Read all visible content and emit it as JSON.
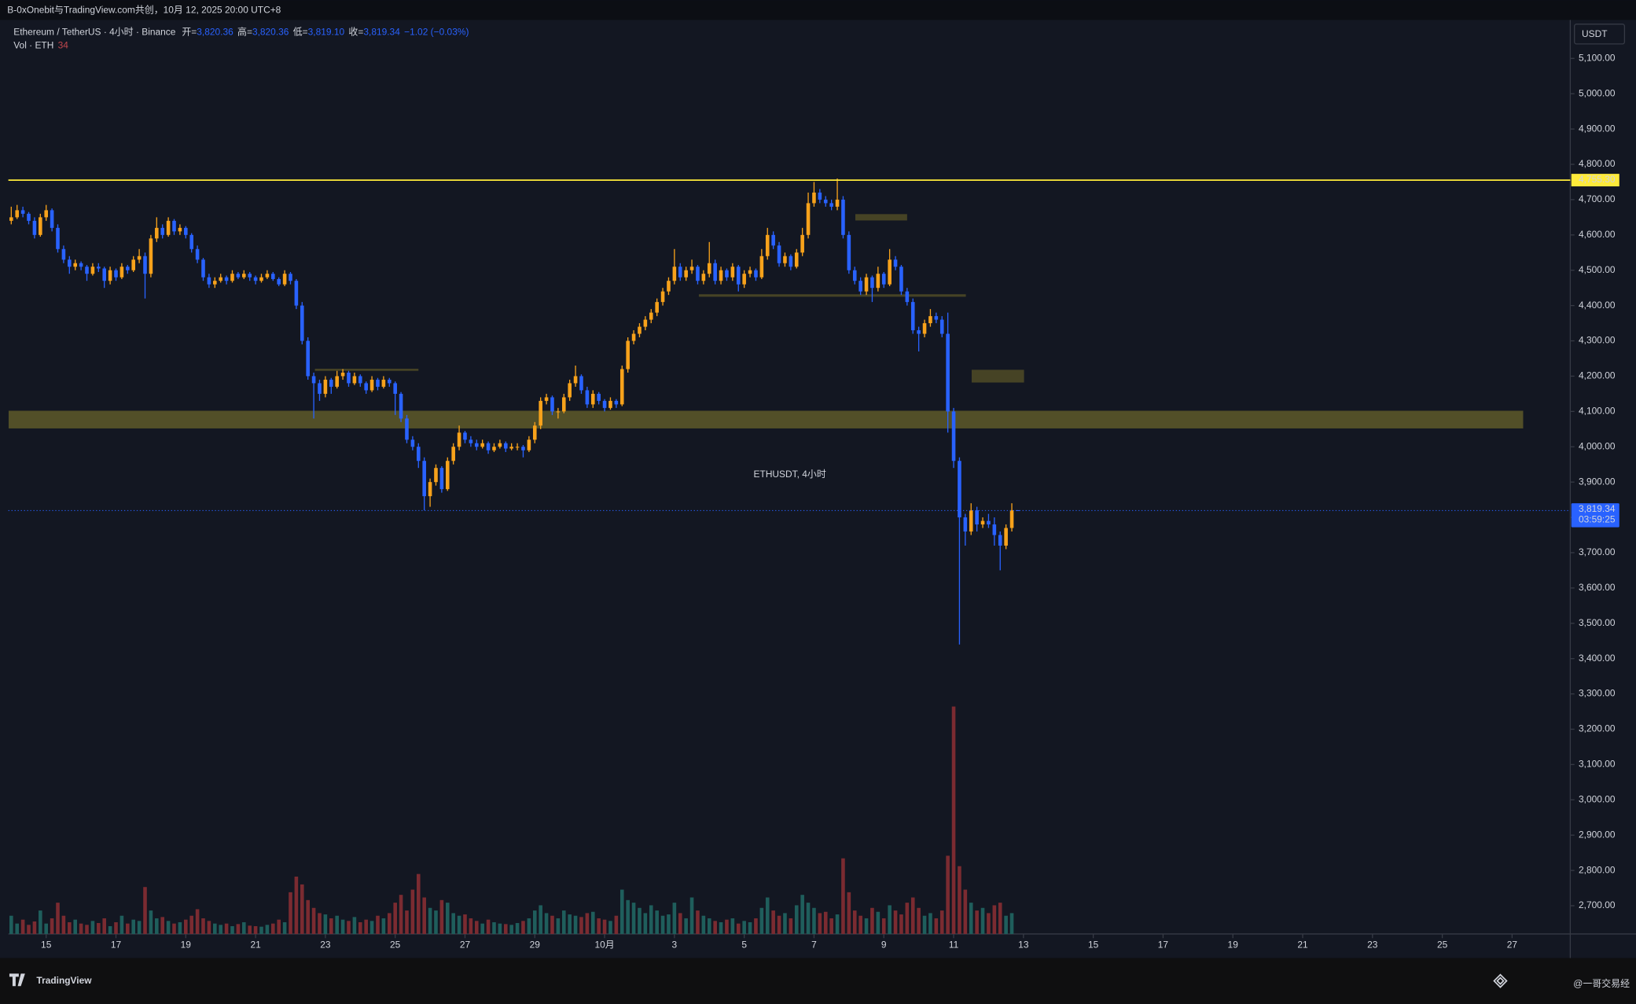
{
  "header": {
    "top_bar": "B-0xOnebit与TradingView.com共创，10月 12, 2025 20:00 UTC+8",
    "brand": "TradingView",
    "author": "@一哥交易经"
  },
  "chart_data": {
    "type": "candlestick",
    "symbol": "Ethereum / TetherUS · 4小时 · Binance",
    "ohlc": [
      {
        "label": "开=",
        "value": "3,820.36"
      },
      {
        "label": "高=",
        "value": "3,820.36"
      },
      {
        "label": "低=",
        "value": "3,819.10"
      },
      {
        "label": "收=",
        "value": "3,819.34"
      }
    ],
    "change": "−1.02 (−0.03%)",
    "volume_label": "Vol · ETH",
    "watermark": "ETHUSDT, 4小时",
    "currency": "USDT",
    "up_color": "#f7a21b",
    "down_color": "#2962ff",
    "volume_up_color": "#1f5e5c",
    "volume_down_color": "#7b2b31",
    "candles": [
      [
        4640,
        4680,
        4630,
        4650
      ],
      [
        4650,
        4685,
        4645,
        4670
      ],
      [
        4670,
        4680,
        4650,
        4660
      ],
      [
        4660,
        4665,
        4630,
        4640
      ],
      [
        4640,
        4650,
        4590,
        4600
      ],
      [
        4600,
        4660,
        4595,
        4650
      ],
      [
        4650,
        4685,
        4640,
        4670
      ],
      [
        4670,
        4675,
        4610,
        4620
      ],
      [
        4620,
        4630,
        4550,
        4560
      ],
      [
        4560,
        4570,
        4520,
        4530
      ],
      [
        4530,
        4540,
        4490,
        4510
      ],
      [
        4510,
        4530,
        4500,
        4520
      ],
      [
        4520,
        4525,
        4500,
        4510
      ],
      [
        4510,
        4515,
        4470,
        4490
      ],
      [
        4490,
        4520,
        4485,
        4510
      ],
      [
        4510,
        4520,
        4495,
        4505
      ],
      [
        4505,
        4510,
        4450,
        4470
      ],
      [
        4470,
        4510,
        4460,
        4500
      ],
      [
        4500,
        4505,
        4470,
        4480
      ],
      [
        4480,
        4520,
        4475,
        4510
      ],
      [
        4510,
        4515,
        4490,
        4500
      ],
      [
        4500,
        4540,
        4495,
        4530
      ],
      [
        4530,
        4560,
        4520,
        4540
      ],
      [
        4540,
        4550,
        4420,
        4490
      ],
      [
        4490,
        4600,
        4480,
        4590
      ],
      [
        4590,
        4650,
        4580,
        4620
      ],
      [
        4620,
        4630,
        4590,
        4600
      ],
      [
        4600,
        4650,
        4595,
        4640
      ],
      [
        4640,
        4645,
        4600,
        4610
      ],
      [
        4610,
        4630,
        4600,
        4620
      ],
      [
        4620,
        4625,
        4590,
        4600
      ],
      [
        4600,
        4605,
        4550,
        4560
      ],
      [
        4560,
        4570,
        4520,
        4530
      ],
      [
        4530,
        4535,
        4470,
        4480
      ],
      [
        4480,
        4490,
        4450,
        4460
      ],
      [
        4460,
        4480,
        4450,
        4470
      ],
      [
        4470,
        4490,
        4465,
        4480
      ],
      [
        4480,
        4485,
        4460,
        4470
      ],
      [
        4470,
        4500,
        4465,
        4490
      ],
      [
        4490,
        4495,
        4475,
        4480
      ],
      [
        4480,
        4500,
        4475,
        4490
      ],
      [
        4490,
        4495,
        4470,
        4480
      ],
      [
        4480,
        4485,
        4460,
        4470
      ],
      [
        4470,
        4490,
        4465,
        4480
      ],
      [
        4480,
        4500,
        4475,
        4490
      ],
      [
        4490,
        4495,
        4470,
        4475
      ],
      [
        4475,
        4480,
        4455,
        4460
      ],
      [
        4460,
        4500,
        4455,
        4490
      ],
      [
        4490,
        4495,
        4460,
        4470
      ],
      [
        4470,
        4475,
        4390,
        4400
      ],
      [
        4400,
        4410,
        4290,
        4300
      ],
      [
        4300,
        4310,
        4190,
        4200
      ],
      [
        4200,
        4210,
        4080,
        4180
      ],
      [
        4180,
        4190,
        4130,
        4150
      ],
      [
        4150,
        4200,
        4140,
        4190
      ],
      [
        4190,
        4195,
        4150,
        4170
      ],
      [
        4170,
        4215,
        4165,
        4200
      ],
      [
        4200,
        4220,
        4190,
        4210
      ],
      [
        4210,
        4215,
        4170,
        4180
      ],
      [
        4180,
        4210,
        4175,
        4200
      ],
      [
        4200,
        4205,
        4170,
        4180
      ],
      [
        4180,
        4185,
        4150,
        4160
      ],
      [
        4160,
        4200,
        4155,
        4190
      ],
      [
        4190,
        4195,
        4160,
        4170
      ],
      [
        4170,
        4200,
        4165,
        4190
      ],
      [
        4190,
        4195,
        4170,
        4180
      ],
      [
        4180,
        4185,
        4090,
        4150
      ],
      [
        4150,
        4155,
        4070,
        4080
      ],
      [
        4080,
        4090,
        4010,
        4020
      ],
      [
        4020,
        4030,
        3990,
        4000
      ],
      [
        4000,
        4010,
        3940,
        3960
      ],
      [
        3960,
        3970,
        3820,
        3860
      ],
      [
        3860,
        3910,
        3830,
        3900
      ],
      [
        3900,
        3950,
        3890,
        3940
      ],
      [
        3940,
        3945,
        3870,
        3880
      ],
      [
        3880,
        3970,
        3875,
        3960
      ],
      [
        3960,
        4010,
        3950,
        4000
      ],
      [
        4000,
        4060,
        3990,
        4040
      ],
      [
        4040,
        4045,
        4010,
        4020
      ],
      [
        4020,
        4030,
        4000,
        4010
      ],
      [
        4010,
        4020,
        3990,
        4000
      ],
      [
        4000,
        4020,
        3995,
        4010
      ],
      [
        4010,
        4015,
        3980,
        3990
      ],
      [
        3990,
        4010,
        3985,
        4000
      ],
      [
        4000,
        4020,
        3995,
        4010
      ],
      [
        4010,
        4015,
        3985,
        3995
      ],
      [
        3995,
        4010,
        3990,
        4000
      ],
      [
        4000,
        4010,
        3990,
        4000
      ],
      [
        4000,
        4005,
        3970,
        3990
      ],
      [
        3990,
        4030,
        3985,
        4020
      ],
      [
        4020,
        4070,
        4010,
        4060
      ],
      [
        4060,
        4140,
        4050,
        4130
      ],
      [
        4130,
        4150,
        4120,
        4140
      ],
      [
        4140,
        4145,
        4090,
        4100
      ],
      [
        4100,
        4110,
        4080,
        4100
      ],
      [
        4100,
        4150,
        4095,
        4140
      ],
      [
        4140,
        4190,
        4130,
        4180
      ],
      [
        4180,
        4230,
        4170,
        4200
      ],
      [
        4200,
        4205,
        4150,
        4160
      ],
      [
        4160,
        4170,
        4110,
        4120
      ],
      [
        4120,
        4160,
        4110,
        4150
      ],
      [
        4150,
        4155,
        4120,
        4130
      ],
      [
        4130,
        4135,
        4100,
        4110
      ],
      [
        4110,
        4140,
        4105,
        4130
      ],
      [
        4130,
        4135,
        4110,
        4120
      ],
      [
        4120,
        4230,
        4115,
        4220
      ],
      [
        4220,
        4310,
        4210,
        4300
      ],
      [
        4300,
        4330,
        4290,
        4320
      ],
      [
        4320,
        4350,
        4310,
        4340
      ],
      [
        4340,
        4370,
        4330,
        4360
      ],
      [
        4360,
        4390,
        4350,
        4380
      ],
      [
        4380,
        4420,
        4370,
        4410
      ],
      [
        4410,
        4450,
        4400,
        4440
      ],
      [
        4440,
        4480,
        4430,
        4470
      ],
      [
        4470,
        4560,
        4460,
        4510
      ],
      [
        4510,
        4520,
        4470,
        4480
      ],
      [
        4480,
        4510,
        4470,
        4500
      ],
      [
        4500,
        4530,
        4490,
        4510
      ],
      [
        4510,
        4515,
        4460,
        4470
      ],
      [
        4470,
        4500,
        4460,
        4490
      ],
      [
        4490,
        4580,
        4480,
        4520
      ],
      [
        4520,
        4530,
        4460,
        4470
      ],
      [
        4470,
        4510,
        4460,
        4500
      ],
      [
        4500,
        4505,
        4470,
        4480
      ],
      [
        4480,
        4520,
        4470,
        4510
      ],
      [
        4510,
        4515,
        4440,
        4460
      ],
      [
        4460,
        4500,
        4450,
        4490
      ],
      [
        4490,
        4510,
        4480,
        4500
      ],
      [
        4500,
        4505,
        4470,
        4480
      ],
      [
        4480,
        4560,
        4475,
        4540
      ],
      [
        4540,
        4620,
        4530,
        4600
      ],
      [
        4600,
        4610,
        4560,
        4570
      ],
      [
        4570,
        4580,
        4510,
        4520
      ],
      [
        4520,
        4550,
        4510,
        4540
      ],
      [
        4540,
        4545,
        4500,
        4510
      ],
      [
        4510,
        4560,
        4505,
        4550
      ],
      [
        4550,
        4620,
        4540,
        4600
      ],
      [
        4600,
        4720,
        4590,
        4690
      ],
      [
        4690,
        4750,
        4680,
        4720
      ],
      [
        4720,
        4730,
        4690,
        4700
      ],
      [
        4700,
        4710,
        4680,
        4690
      ],
      [
        4690,
        4700,
        4670,
        4680
      ],
      [
        4680,
        4760,
        4670,
        4700
      ],
      [
        4700,
        4710,
        4590,
        4600
      ],
      [
        4600,
        4610,
        4490,
        4500
      ],
      [
        4500,
        4510,
        4460,
        4470
      ],
      [
        4470,
        4480,
        4430,
        4440
      ],
      [
        4440,
        4490,
        4430,
        4480
      ],
      [
        4480,
        4485,
        4410,
        4450
      ],
      [
        4450,
        4510,
        4440,
        4490
      ],
      [
        4490,
        4495,
        4450,
        4460
      ],
      [
        4460,
        4560,
        4455,
        4530
      ],
      [
        4530,
        4540,
        4500,
        4510
      ],
      [
        4510,
        4515,
        4430,
        4440
      ],
      [
        4440,
        4450,
        4400,
        4410
      ],
      [
        4410,
        4420,
        4320,
        4330
      ],
      [
        4330,
        4340,
        4270,
        4320
      ],
      [
        4320,
        4360,
        4310,
        4350
      ],
      [
        4350,
        4390,
        4340,
        4370
      ],
      [
        4370,
        4380,
        4350,
        4360
      ],
      [
        4360,
        4370,
        4310,
        4320
      ],
      [
        4320,
        4380,
        4040,
        4100
      ],
      [
        4100,
        4110,
        3940,
        3960
      ],
      [
        3960,
        3970,
        3440,
        3800
      ],
      [
        3800,
        3810,
        3720,
        3760
      ],
      [
        3760,
        3840,
        3750,
        3820
      ],
      [
        3820,
        3830,
        3760,
        3780
      ],
      [
        3780,
        3800,
        3770,
        3790
      ],
      [
        3790,
        3810,
        3770,
        3780
      ],
      [
        3780,
        3800,
        3720,
        3750
      ],
      [
        3750,
        3760,
        3650,
        3720
      ],
      [
        3720,
        3780,
        3710,
        3770
      ],
      [
        3770,
        3840,
        3760,
        3820.36
      ],
      [
        3820.36,
        3820.36,
        3819.1,
        3819.34
      ]
    ],
    "volume": [
      70000,
      40000,
      55000,
      35000,
      48000,
      90000,
      40000,
      60000,
      120000,
      70000,
      45000,
      55000,
      40000,
      35000,
      50000,
      42000,
      60000,
      30000,
      45000,
      70000,
      40000,
      55000,
      50000,
      180000,
      90000,
      60000,
      65000,
      50000,
      40000,
      45000,
      55000,
      70000,
      95000,
      60000,
      50000,
      40000,
      35000,
      40000,
      30000,
      38000,
      45000,
      32000,
      30000,
      28000,
      35000,
      40000,
      55000,
      45000,
      160000,
      220000,
      190000,
      130000,
      100000,
      80000,
      75000,
      60000,
      70000,
      55000,
      50000,
      65000,
      45000,
      55000,
      50000,
      70000,
      60000,
      80000,
      120000,
      150000,
      90000,
      170000,
      230000,
      140000,
      100000,
      90000,
      130000,
      120000,
      80000,
      70000,
      75000,
      60000,
      50000,
      40000,
      55000,
      45000,
      40000,
      38000,
      35000,
      42000,
      50000,
      60000,
      90000,
      110000,
      80000,
      70000,
      60000,
      90000,
      75000,
      70000,
      65000,
      80000,
      85000,
      60000,
      55000,
      50000,
      70000,
      170000,
      130000,
      120000,
      100000,
      80000,
      110000,
      90000,
      70000,
      75000,
      120000,
      80000,
      60000,
      140000,
      90000,
      70000,
      60000,
      50000,
      45000,
      55000,
      60000,
      40000,
      50000,
      45000,
      60000,
      100000,
      140000,
      90000,
      70000,
      80000,
      60000,
      110000,
      150000,
      120000,
      100000,
      80000,
      85000,
      60000,
      75000,
      290000,
      160000,
      90000,
      70000,
      60000,
      100000,
      85000,
      60000,
      110000,
      90000,
      75000,
      120000,
      140000,
      100000,
      70000,
      80000,
      60000,
      90000,
      300000,
      872000,
      260000,
      170000,
      120000,
      90000,
      100000,
      80000,
      110000,
      120000,
      70000,
      80000,
      34
    ],
    "xlim": [
      -0.5,
      268
    ],
    "xticks": [
      {
        "value": 6,
        "label": "15"
      },
      {
        "value": 18,
        "label": "17"
      },
      {
        "value": 30,
        "label": "19"
      },
      {
        "value": 42,
        "label": "21"
      },
      {
        "value": 54,
        "label": "23"
      },
      {
        "value": 66,
        "label": "25"
      },
      {
        "value": 78,
        "label": "27"
      },
      {
        "value": 90,
        "label": "29"
      },
      {
        "value": 102,
        "label": "10月"
      },
      {
        "value": 114,
        "label": "3"
      },
      {
        "value": 126,
        "label": "5"
      },
      {
        "value": 138,
        "label": "7"
      },
      {
        "value": 150,
        "label": "9"
      },
      {
        "value": 162,
        "label": "11"
      },
      {
        "value": 174,
        "label": "13"
      },
      {
        "value": 186,
        "label": "15"
      },
      {
        "value": 198,
        "label": "17"
      },
      {
        "value": 210,
        "label": "19"
      },
      {
        "value": 222,
        "label": "21"
      },
      {
        "value": 234,
        "label": "23"
      },
      {
        "value": 246,
        "label": "25"
      },
      {
        "value": 258,
        "label": "27"
      }
    ],
    "ylim": [
      2620,
      5209
    ],
    "yticks": [
      {
        "value": 2700,
        "label": "2,700.00"
      },
      {
        "value": 2800,
        "label": "2,800.00"
      },
      {
        "value": 2900,
        "label": "2,900.00"
      },
      {
        "value": 3000,
        "label": "3,000.00"
      },
      {
        "value": 3100,
        "label": "3,100.00"
      },
      {
        "value": 3200,
        "label": "3,200.00"
      },
      {
        "value": 3300,
        "label": "3,300.00"
      },
      {
        "value": 3400,
        "label": "3,400.00"
      },
      {
        "value": 3500,
        "label": "3,500.00"
      },
      {
        "value": 3600,
        "label": "3,600.00"
      },
      {
        "value": 3700,
        "label": "3,700.00"
      },
      {
        "value": 3800,
        "label": "3,800.00"
      },
      {
        "value": 3900,
        "label": "3,900.00"
      },
      {
        "value": 4000,
        "label": "4,000.00"
      },
      {
        "value": 4100,
        "label": "4,100.00"
      },
      {
        "value": 4200,
        "label": "4,200.00"
      },
      {
        "value": 4300,
        "label": "4,300.00"
      },
      {
        "value": 4400,
        "label": "4,400.00"
      },
      {
        "value": 4500,
        "label": "4,500.00"
      },
      {
        "value": 4600,
        "label": "4,600.00"
      },
      {
        "value": 4700,
        "label": "4,700.00"
      },
      {
        "value": 4800,
        "label": "4,800.00"
      },
      {
        "value": 4900,
        "label": "4,900.00"
      },
      {
        "value": 5000,
        "label": "5,000.00"
      },
      {
        "value": 5100,
        "label": "5,100.00"
      }
    ],
    "level": {
      "value": 4755.3,
      "label": "4,755.30",
      "color": "#ffeb3b"
    },
    "last_price": {
      "value": 3819.34,
      "label": "3,819.34",
      "countdown": "03:59:25",
      "color": "#2962ff"
    },
    "zones": [
      {
        "x": [
          -0.45,
          259.9
        ],
        "y": [
          4052,
          4102
        ],
        "color": "#5a5529"
      },
      {
        "x": [
          145.1,
          154
        ],
        "y": [
          4641,
          4659
        ],
        "color": "#4d4826"
      },
      {
        "x": [
          118.2,
          164.1
        ],
        "y": [
          4425,
          4432
        ],
        "color": "#4d4826"
      },
      {
        "x": [
          52.2,
          70
        ],
        "y": [
          4215,
          4221
        ],
        "color": "#4d4826"
      },
      {
        "x": [
          165.1,
          174.1
        ],
        "y": [
          4182,
          4218
        ],
        "color": "#4d4826"
      }
    ]
  }
}
